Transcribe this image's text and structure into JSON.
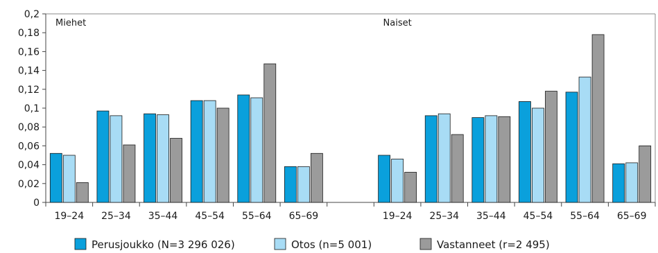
{
  "chart_data": {
    "type": "bar",
    "title": "",
    "xlabel": "",
    "ylabel": "",
    "ylim": [
      0,
      0.2
    ],
    "yticks": [
      "0",
      "0,02",
      "0,04",
      "0,06",
      "0,08",
      "0,1",
      "0,12",
      "0,14",
      "0,16",
      "0,18",
      "0,2"
    ],
    "grid": false,
    "legend_position": "bottom",
    "panel_labels": [
      "Miehet",
      "Naiset"
    ],
    "categories": [
      "19–24",
      "25–34",
      "35–44",
      "45–54",
      "55–64",
      "65–69",
      "",
      "19–24",
      "25–34",
      "35–44",
      "45–54",
      "55–64",
      "65–69"
    ],
    "series": [
      {
        "name": "Perusjoukko (N=3 296 026)",
        "color": "#0aa0dc",
        "values": [
          0.052,
          0.097,
          0.094,
          0.108,
          0.114,
          0.038,
          null,
          0.05,
          0.092,
          0.09,
          0.107,
          0.117,
          0.041
        ]
      },
      {
        "name": "Otos (n=5 001)",
        "color": "#a8dcf5",
        "values": [
          0.05,
          0.092,
          0.093,
          0.108,
          0.111,
          0.038,
          null,
          0.046,
          0.094,
          0.092,
          0.1,
          0.133,
          0.042
        ]
      },
      {
        "name": "Vastanneet (r=2 495)",
        "color": "#9b9b9b",
        "values": [
          0.021,
          0.061,
          0.068,
          0.1,
          0.147,
          0.052,
          null,
          0.032,
          0.072,
          0.091,
          0.118,
          0.178,
          0.06
        ]
      }
    ]
  }
}
